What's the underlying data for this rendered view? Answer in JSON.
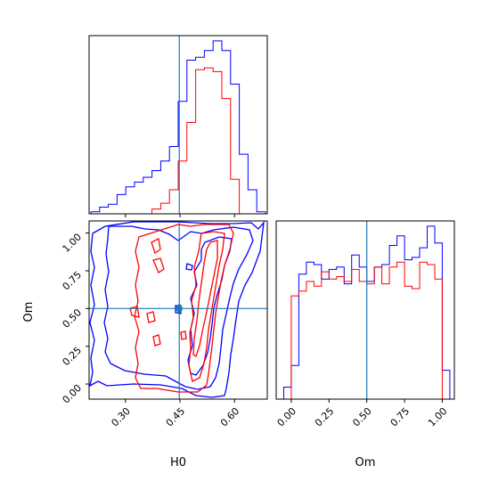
{
  "chart_data": {
    "type": "corner",
    "parameters": [
      "H0",
      "Om"
    ],
    "truth": {
      "H0": 0.448,
      "Om": 0.5
    },
    "colors": {
      "run_a": "#0000ff",
      "run_b": "#ff0000",
      "truth": "#1f77b4"
    },
    "h0_axis": {
      "label": "H0",
      "range": [
        0.2,
        0.69
      ],
      "ticks": [
        0.3,
        0.45,
        0.6
      ],
      "tick_labels": [
        "0.30",
        "0.45",
        "0.60"
      ]
    },
    "om_axis": {
      "label": "Om",
      "range": [
        -0.1,
        1.08
      ],
      "ticks": [
        0.0,
        0.25,
        0.5,
        0.75,
        1.0
      ],
      "tick_labels": [
        "0.00",
        "0.25",
        "0.50",
        "0.75",
        "1.00"
      ]
    },
    "h0_hist": {
      "edges": [
        0.205,
        0.229,
        0.253,
        0.277,
        0.301,
        0.325,
        0.349,
        0.373,
        0.397,
        0.421,
        0.445,
        0.469,
        0.493,
        0.517,
        0.541,
        0.565,
        0.589,
        0.613,
        0.637,
        0.661,
        0.685
      ],
      "run_a": [
        2,
        7,
        10,
        20,
        28,
        33,
        38,
        45,
        55,
        70,
        117,
        160,
        163,
        170,
        180,
        170,
        135,
        62,
        25,
        2
      ],
      "run_b": [
        0,
        0,
        0,
        0,
        0,
        0,
        0,
        5,
        11,
        25,
        55,
        95,
        150,
        152,
        148,
        120,
        36,
        0,
        0,
        0
      ]
    },
    "om_hist": {
      "edges": [
        -0.05,
        0.0,
        0.05,
        0.1,
        0.15,
        0.2,
        0.25,
        0.3,
        0.35,
        0.4,
        0.45,
        0.5,
        0.55,
        0.6,
        0.65,
        0.7,
        0.75,
        0.8,
        0.85,
        0.9,
        0.95,
        1.0,
        1.05
      ],
      "run_a": [
        5,
        14,
        52,
        57,
        56,
        50,
        54,
        55,
        48,
        60,
        55,
        49,
        55,
        56,
        64,
        68,
        58,
        59,
        63,
        72,
        65,
        12
      ],
      "run_b": [
        0,
        43,
        45,
        49,
        47,
        53,
        50,
        51,
        49,
        54,
        49,
        48,
        55,
        48,
        55,
        57,
        47,
        46,
        57,
        56,
        50,
        0
      ]
    }
  }
}
